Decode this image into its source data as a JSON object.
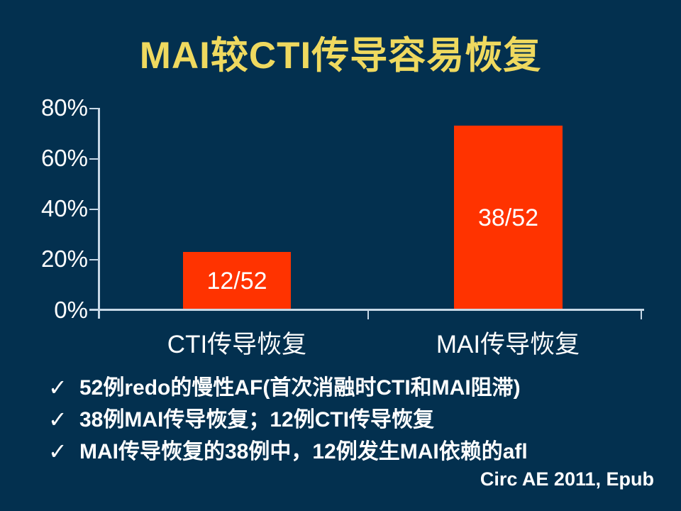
{
  "slide": {
    "title": "MAI较CTI传导容易恢复",
    "bullets": [
      {
        "marker": "✓",
        "text": "52例redo的慢性AF(首次消融时CTI和MAI阻滞)"
      },
      {
        "marker": "✓",
        "text": "38例MAI传导恢复；12例CTI传导恢复"
      },
      {
        "marker": "✓",
        "text": "MAI传导恢复的38例中，12例发生MAI依赖的afl"
      }
    ],
    "citation": "Circ AE 2011, Epub"
  },
  "chart_data": {
    "type": "bar",
    "categories": [
      "CTI传导恢复",
      "MAI传导恢复"
    ],
    "values": [
      23.1,
      73.1
    ],
    "bar_labels": [
      "12/52",
      "38/52"
    ],
    "title": "",
    "xlabel": "",
    "ylabel": "",
    "ytick_labels": [
      "80%",
      "60%",
      "40%",
      "20%",
      "0%"
    ],
    "ylim": [
      0,
      80
    ],
    "grid": false,
    "legend": false
  },
  "colors": {
    "background": "#03304F",
    "title_text": "#EFD95F",
    "bar_fill": "#FF3300",
    "axis_line": "#C7D8E6",
    "body_text": "#FFFFFF"
  }
}
